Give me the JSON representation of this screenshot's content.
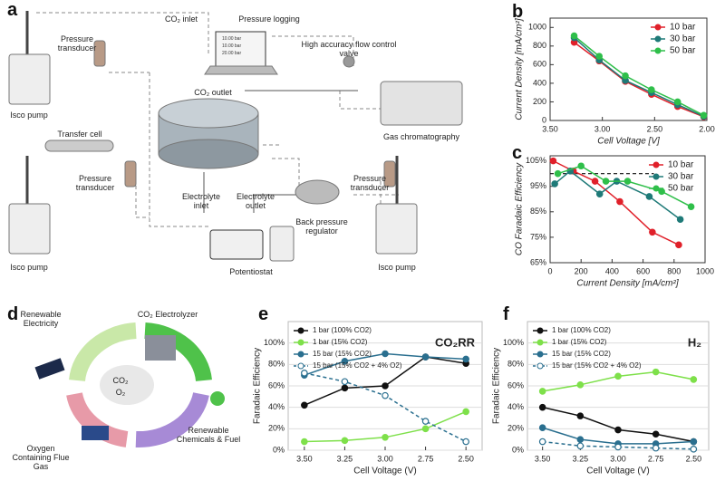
{
  "panel_labels": [
    "a",
    "b",
    "c",
    "d",
    "e",
    "f"
  ],
  "diagram_a": {
    "pressure_transducer_1": "Pressure transducer",
    "co2_inlet": "CO₂ inlet",
    "pressure_logging": "Pressure logging",
    "screen_lines": [
      "10.00 bar",
      "10.00 bar",
      "20.00 bar"
    ],
    "flow_valve": "High accuracy flow control valve",
    "co2_outlet": "CO₂ outlet",
    "gas_chromatography": "Gas chromatography",
    "isco_pump_1": "Isco pump",
    "transfer_cell": "Transfer cell",
    "pressure_transducer_2": "Pressure transducer",
    "electrolyte_inlet": "Electrolyte inlet",
    "electrolyte_outlet": "Electrolyte outlet",
    "back_pressure_regulator": "Back pressure regulator",
    "pressure_transducer_3": "Pressure transducer",
    "isco_pump_2": "Isco pump",
    "potentiostat": "Potentiostat",
    "isco_pump_3": "Isco pump"
  },
  "diagram_d": {
    "renewable_electricity": "Renewable Electricity",
    "co2_electrolyzer": "CO₂ Electrolyzer",
    "co2": "CO₂",
    "o2": "O₂",
    "flue_gas": "Oxygen Containing Flue Gas",
    "chemicals": "Renewable Chemicals & Fuel"
  },
  "chart_data": [
    {
      "type": "line",
      "xlabel": "Cell Voltage [V]",
      "ylabel": "Current Density [mA/cm²]",
      "x": [
        3.27,
        3.03,
        2.78,
        2.53,
        2.28,
        2.03
      ],
      "xlim": [
        3.5,
        2.0
      ],
      "xticks": [
        {
          "value": 3.5,
          "label": "3.50"
        },
        {
          "value": 3.0,
          "label": "3.00"
        },
        {
          "value": 2.5,
          "label": "2.50"
        },
        {
          "value": 2.0,
          "label": "2.00"
        }
      ],
      "ylim": [
        0,
        1100
      ],
      "yticks": [
        0,
        200,
        400,
        600,
        800,
        1000
      ],
      "legend": "upper right",
      "grid": false,
      "series": [
        {
          "name": "10 bar",
          "color": "#e0202a",
          "values": [
            840,
            640,
            420,
            280,
            150,
            40
          ]
        },
        {
          "name": "30 bar",
          "color": "#1f7a78",
          "values": [
            890,
            650,
            430,
            300,
            170,
            45
          ]
        },
        {
          "name": "50 bar",
          "color": "#2fbf4a",
          "values": [
            910,
            690,
            480,
            330,
            200,
            55
          ]
        }
      ]
    },
    {
      "type": "line",
      "xlabel": "Current Density [mA/cm²]",
      "ylabel": "CO Faradaic Efficiency",
      "xlim": [
        0,
        1000
      ],
      "xticks": [
        0,
        200,
        400,
        600,
        800,
        1000
      ],
      "ylim": [
        65,
        107
      ],
      "yticks": [
        {
          "value": 65,
          "label": "65%"
        },
        {
          "value": 75,
          "label": "75%"
        },
        {
          "value": 85,
          "label": "85%"
        },
        {
          "value": 95,
          "label": "95%"
        },
        {
          "value": 105,
          "label": "105%"
        }
      ],
      "legend": "upper right",
      "grid": false,
      "reference_line": {
        "value": 100,
        "xrange": [
          0,
          670
        ]
      },
      "series": [
        {
          "name": "10 bar",
          "color": "#e0202a",
          "x": [
            20,
            150,
            290,
            450,
            660,
            830
          ],
          "values": [
            105,
            101,
            97,
            89,
            77,
            72
          ]
        },
        {
          "name": "30 bar",
          "color": "#1f7a78",
          "x": [
            30,
            130,
            320,
            430,
            640,
            840
          ],
          "values": [
            96,
            101,
            92,
            97,
            91,
            82
          ]
        },
        {
          "name": "50 bar",
          "color": "#2fbf4a",
          "x": [
            50,
            200,
            360,
            500,
            720,
            910
          ],
          "values": [
            100,
            103,
            97,
            97,
            93,
            87
          ]
        }
      ]
    },
    {
      "type": "line",
      "xlabel": "Cell Voltage (V)",
      "ylabel": "Faradaic Efficiency",
      "annotation": "CO₂RR",
      "x": [
        3.5,
        3.25,
        3.0,
        2.75,
        2.5
      ],
      "xlim": [
        3.6,
        2.4
      ],
      "xticks": [
        {
          "value": 3.5,
          "label": "3.50"
        },
        {
          "value": 3.25,
          "label": "3.25"
        },
        {
          "value": 3.0,
          "label": "3.00"
        },
        {
          "value": 2.75,
          "label": "2.75"
        },
        {
          "value": 2.5,
          "label": "2.50"
        }
      ],
      "ylim": [
        0,
        120
      ],
      "yticks": [
        {
          "value": 0,
          "label": "0%"
        },
        {
          "value": 20,
          "label": "20%"
        },
        {
          "value": 40,
          "label": "40%"
        },
        {
          "value": 60,
          "label": "60%"
        },
        {
          "value": 80,
          "label": "80%"
        },
        {
          "value": 100,
          "label": "100%"
        }
      ],
      "legend": "upper left",
      "grid": true,
      "series": [
        {
          "name": "1 bar (100% CO2)",
          "color": "#111111",
          "values": [
            42,
            58,
            60,
            87,
            81
          ]
        },
        {
          "name": "1 bar (15% CO2)",
          "color": "#7ee04a",
          "values": [
            8,
            9,
            12,
            20,
            36
          ]
        },
        {
          "name": "15 bar (15% CO2)",
          "color": "#2a6f8f",
          "values": [
            70,
            83,
            90,
            87,
            85
          ]
        },
        {
          "name": "15 bar (15% CO2 + 4% O2)",
          "color": "#2a6f8f",
          "dashed": true,
          "hollow": true,
          "values": [
            72,
            64,
            51,
            27,
            8
          ]
        }
      ]
    },
    {
      "type": "line",
      "xlabel": "Cell Voltage (V)",
      "ylabel": "Faradaic Efficiency",
      "annotation": "H₂",
      "x": [
        3.5,
        3.25,
        3.0,
        2.75,
        2.5
      ],
      "xlim": [
        3.6,
        2.4
      ],
      "xticks": [
        {
          "value": 3.5,
          "label": "3.50"
        },
        {
          "value": 3.25,
          "label": "3.25"
        },
        {
          "value": 3.0,
          "label": "3.00"
        },
        {
          "value": 2.75,
          "label": "2.75"
        },
        {
          "value": 2.5,
          "label": "2.50"
        }
      ],
      "ylim": [
        0,
        120
      ],
      "yticks": [
        {
          "value": 0,
          "label": "0%"
        },
        {
          "value": 20,
          "label": "20%"
        },
        {
          "value": 40,
          "label": "40%"
        },
        {
          "value": 60,
          "label": "60%"
        },
        {
          "value": 80,
          "label": "80%"
        },
        {
          "value": 100,
          "label": "100%"
        }
      ],
      "legend": "upper left",
      "grid": true,
      "series": [
        {
          "name": "1 bar (100% CO2)",
          "color": "#111111",
          "values": [
            40,
            32,
            19,
            15,
            8
          ]
        },
        {
          "name": "1 bar (15% CO2)",
          "color": "#7ee04a",
          "values": [
            55,
            61,
            69,
            73,
            66
          ]
        },
        {
          "name": "15 bar (15% CO2)",
          "color": "#2a6f8f",
          "values": [
            21,
            10,
            6,
            6,
            8
          ]
        },
        {
          "name": "15 bar (15% CO2 + 4% O2)",
          "color": "#2a6f8f",
          "dashed": true,
          "hollow": true,
          "values": [
            8,
            4,
            3,
            2,
            1
          ]
        }
      ]
    }
  ]
}
